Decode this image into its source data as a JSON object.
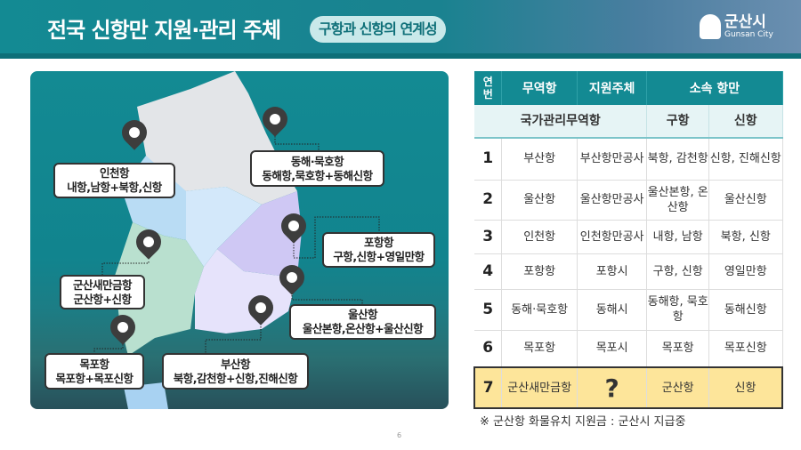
{
  "header": {
    "title": "전국 신항만 지원·관리 주체",
    "pill": "구항과 신항의 연계성",
    "logo_korean": "군산시",
    "logo_english": "Gunsan City"
  },
  "map": {
    "callouts": [
      {
        "name": "인천항",
        "detail": "내항,남항+북항,신항"
      },
      {
        "name": "동해·묵호항",
        "detail": "동해항,묵호항+동해신항"
      },
      {
        "name": "포항항",
        "detail": "구항,신항+영일만항"
      },
      {
        "name": "군산새만금항",
        "detail": "군산항+신항"
      },
      {
        "name": "울산항",
        "detail": "울산본항,온산항+울산신항"
      },
      {
        "name": "목포항",
        "detail": "목포항+목포신항"
      },
      {
        "name": "부산항",
        "detail": "북항,감천항+신항,진해신항"
      }
    ]
  },
  "table": {
    "headers": {
      "no": "연번",
      "port": "무역항",
      "support": "지원주체",
      "affiliated": "소속 항만"
    },
    "subheaders": {
      "category": "국가관리무역항",
      "old": "구항",
      "new": "신항"
    },
    "rows": [
      {
        "no": "1",
        "port": "부산항",
        "support": "부산항만공사",
        "old": "북항, 감천항",
        "new": "신항, 진해신항"
      },
      {
        "no": "2",
        "port": "울산항",
        "support": "울산항만공사",
        "old": "울산본항, 온산항",
        "new": "울산신항"
      },
      {
        "no": "3",
        "port": "인천항",
        "support": "인천항만공사",
        "old": "내항, 남항",
        "new": "북항, 신항"
      },
      {
        "no": "4",
        "port": "포항항",
        "support": "포항시",
        "old": "구항, 신항",
        "new": "영일만항"
      },
      {
        "no": "5",
        "port": "동해·묵호항",
        "support": "동해시",
        "old": "동해항, 묵호항",
        "new": "동해신항"
      },
      {
        "no": "6",
        "port": "목포항",
        "support": "목포시",
        "old": "목포항",
        "new": "목포신항"
      },
      {
        "no": "7",
        "port": "군산새만금항",
        "support": "?",
        "old": "군산항",
        "new": "신항"
      }
    ]
  },
  "note": "※ 군산항 화물유치 지원금 : 군산시 지급중",
  "page_number": "6",
  "colors": {
    "teal": "#138a93",
    "highlight": "#fde59a"
  }
}
